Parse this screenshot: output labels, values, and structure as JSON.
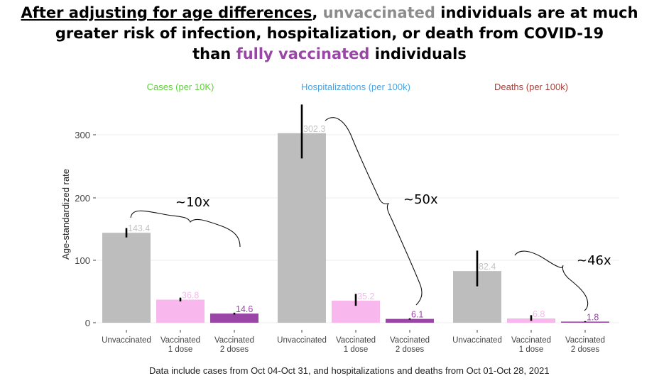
{
  "headline": {
    "part1": "After adjusting for age differences",
    "part2": ",",
    "part3": "unvaccinated",
    "part4": "individuals are at much",
    "part5": "greater risk of infection, hospitalization, or death from COVID-19",
    "part6": "than",
    "part7": "fully vaccinated",
    "part8": "individuals"
  },
  "colors": {
    "unvaccinated": "#bdbdbd",
    "one_dose": "#f8b8ee",
    "two_doses": "#9a46a7",
    "cases_title": "#5fd13b",
    "hosp_title": "#4da3e0",
    "deaths_title": "#a3403c"
  },
  "chart_data": {
    "type": "bar",
    "ylabel": "Age-standardized rate",
    "ylim": [
      0,
      340
    ],
    "yticks": [
      0,
      100,
      200,
      300
    ],
    "categories": [
      "Unvaccinated",
      "Vaccinated\n1 dose",
      "Vaccinated\n2 doses"
    ],
    "panels": [
      {
        "title": "Cases (per 10K)",
        "values": [
          143.4,
          36.8,
          14.6
        ],
        "labels": [
          "143.4",
          "36.8",
          "14.6"
        ],
        "err_low": [
          136,
          34,
          13
        ],
        "err_high": [
          151,
          40,
          16
        ],
        "annotation": "~10x"
      },
      {
        "title": "Hospitalizations (per 100k)",
        "values": [
          302.3,
          35.2,
          6.1
        ],
        "labels": [
          "302.3",
          "35.2",
          "6.1"
        ],
        "err_low": [
          262,
          27,
          5
        ],
        "err_high": [
          348,
          46,
          7
        ],
        "annotation": "~50x"
      },
      {
        "title": "Deaths (per 100k)",
        "values": [
          82.4,
          6.8,
          1.8
        ],
        "labels": [
          "82.4",
          "6.8",
          "1.8"
        ],
        "err_low": [
          58,
          3,
          1
        ],
        "err_high": [
          115,
          12,
          2.5
        ],
        "annotation": "~46x"
      }
    ]
  },
  "footnote": "Data include cases from Oct 04-Oct 31, and hospitalizations and deaths from Oct 01-Oct 28, 2021"
}
